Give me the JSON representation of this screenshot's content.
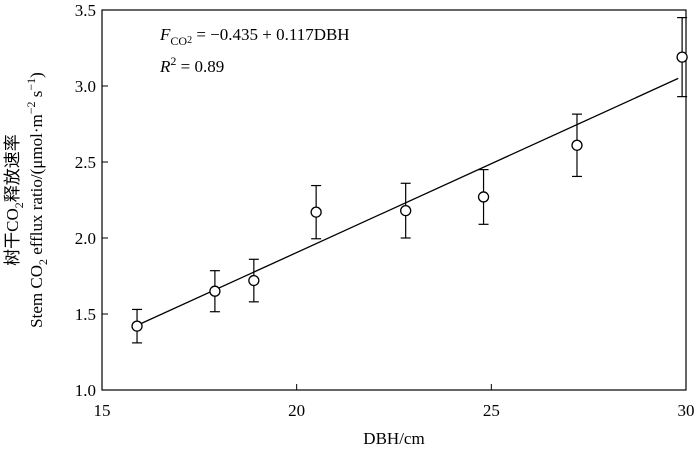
{
  "chart_data": {
    "type": "scatter",
    "x_label": "DBH/cm",
    "y_label": [
      [
        {
          "text": "树干CO",
          "style": "normal"
        },
        {
          "text": "2",
          "style": "sub"
        },
        {
          "text": "释放速率",
          "style": "normal"
        }
      ],
      [
        {
          "text": "Stem CO",
          "style": "normal"
        },
        {
          "text": "2",
          "style": "sub"
        },
        {
          "text": " efflux ratio/(μmol·m",
          "style": "normal"
        },
        {
          "text": "−2",
          "style": "sup"
        },
        {
          "text": " s",
          "style": "normal"
        },
        {
          "text": "−1",
          "style": "sup"
        },
        {
          "text": ")",
          "style": "normal"
        }
      ]
    ],
    "annotations": [
      [
        {
          "text": "F",
          "style": "italic"
        },
        {
          "text": "CO",
          "style": "sub"
        },
        {
          "text": "2",
          "style": "subsub"
        },
        {
          "text": " = −0.435 + 0.117DBH",
          "style": "normal"
        }
      ],
      [
        {
          "text": "R",
          "style": "italic"
        },
        {
          "text": "2",
          "style": "sup"
        },
        {
          "text": " = 0.89",
          "style": "normal"
        }
      ]
    ],
    "x": [
      15.9,
      17.9,
      18.9,
      20.5,
      22.8,
      24.8,
      27.2,
      29.9
    ],
    "series": [
      {
        "color": "#000000",
        "values": [
          1.42,
          1.65,
          1.72,
          2.17,
          2.18,
          2.27,
          2.61,
          3.19
        ],
        "errors": [
          0.11,
          0.135,
          0.14,
          0.175,
          0.18,
          0.18,
          0.205,
          0.26
        ]
      }
    ],
    "fit_line": {
      "x": [
        15.9,
        29.8
      ],
      "values": [
        1.425,
        3.05
      ]
    },
    "xlim": [
      15,
      30
    ],
    "xticks": [
      15,
      20,
      25,
      30
    ],
    "ylim": [
      1.0,
      3.5
    ],
    "yticks": [
      {
        "value": 1.0,
        "label": "1.0"
      },
      {
        "value": 1.5,
        "label": "1.5"
      },
      {
        "value": 2.0,
        "label": "2.0"
      },
      {
        "value": 2.5,
        "label": "2.5"
      },
      {
        "value": 3.0,
        "label": "3.0"
      },
      {
        "value": 3.5,
        "label": "3.5"
      }
    ]
  }
}
